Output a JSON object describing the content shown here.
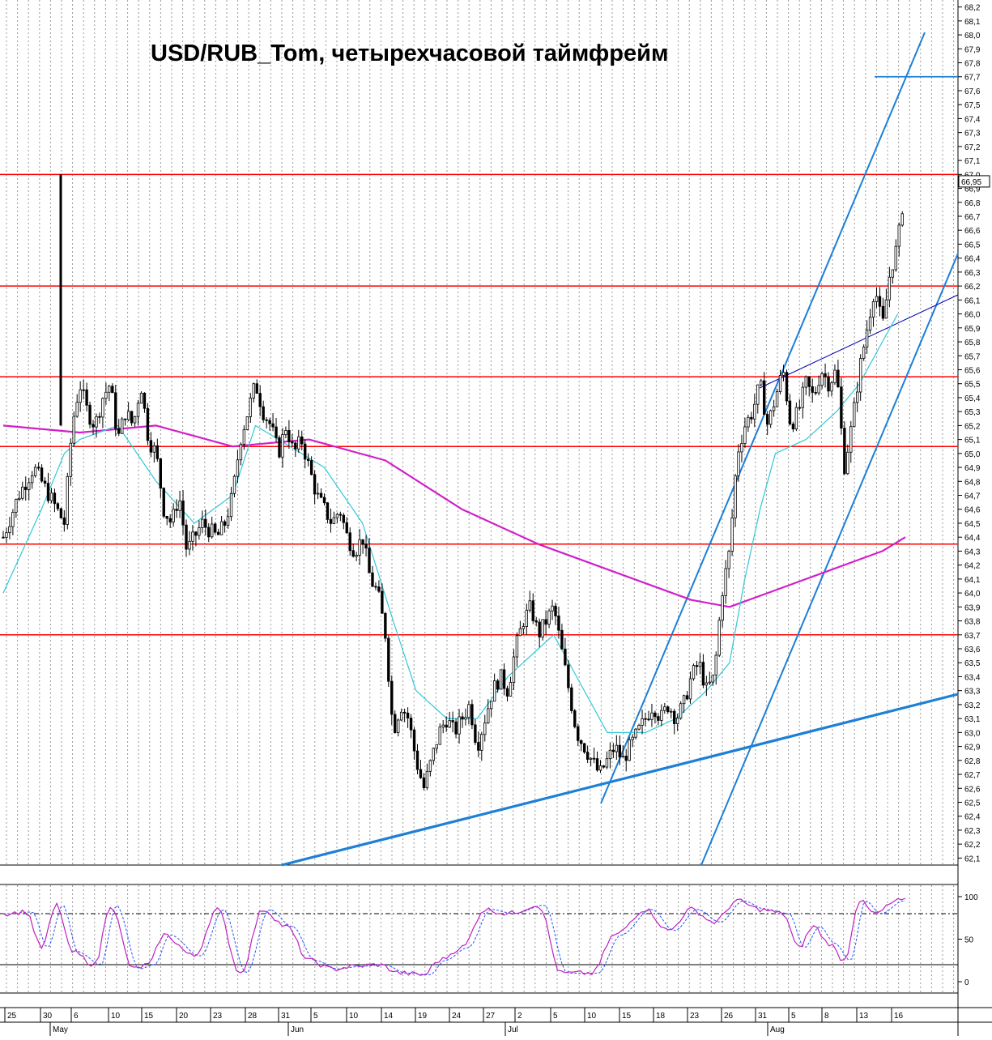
{
  "chart_data": {
    "type": "candlestick",
    "title": "USD/RUB_Tom, четырехчасовой таймфрейм",
    "last_price_label": "66,95",
    "price_axis": {
      "ylim": [
        62.05,
        68.25
      ],
      "ticks": [
        "68,2",
        "68,1",
        "68,0",
        "67,9",
        "67,8",
        "67,7",
        "67,6",
        "67,5",
        "67,4",
        "67,3",
        "67,2",
        "67,1",
        "67,0",
        "66,9",
        "66,8",
        "66,7",
        "66,6",
        "66,5",
        "66,4",
        "66,3",
        "66,2",
        "66,1",
        "66,0",
        "65,9",
        "65,8",
        "65,7",
        "65,6",
        "65,5",
        "65,4",
        "65,3",
        "65,2",
        "65,1",
        "65,0",
        "64,9",
        "64,8",
        "64,7",
        "64,6",
        "64,5",
        "64,4",
        "64,3",
        "64,2",
        "64,1",
        "64,0",
        "63,9",
        "63,8",
        "63,7",
        "63,6",
        "63,5",
        "63,4",
        "63,3",
        "63,2",
        "63,1",
        "63,0",
        "62,9",
        "62,8",
        "62,7",
        "62,6",
        "62,5",
        "62,4",
        "62,3",
        "62,2",
        "62,1"
      ]
    },
    "oscillator_axis": {
      "ylim": [
        -5,
        105
      ],
      "ticks": [
        "100",
        "50",
        "0"
      ],
      "levels": [
        80,
        20
      ]
    },
    "date_axis": {
      "days": [
        "25",
        "30",
        "6",
        "10",
        "15",
        "20",
        "23",
        "28",
        "31",
        "5",
        "10",
        "14",
        "19",
        "24",
        "27",
        "2",
        "5",
        "10",
        "15",
        "18",
        "23",
        "26",
        "31",
        "5",
        "8",
        "13",
        "16"
      ],
      "months": [
        "May",
        "Jun",
        "Jul",
        "Aug"
      ]
    },
    "support_resistance_levels": [
      67.0,
      66.2,
      65.55,
      65.05,
      64.35,
      63.7,
      67.7
    ],
    "price_path": [
      [
        0,
        64.4
      ],
      [
        2,
        64.7
      ],
      [
        4,
        64.9
      ],
      [
        6,
        64.7
      ],
      [
        8,
        64.5
      ],
      [
        9,
        65.2
      ],
      [
        10,
        65.5
      ],
      [
        11,
        65.3
      ],
      [
        12,
        65.2
      ],
      [
        13,
        65.4
      ],
      [
        14,
        65.5
      ],
      [
        15,
        65.1
      ],
      [
        16,
        65.3
      ],
      [
        17,
        65.2
      ],
      [
        18,
        65.5
      ],
      [
        19,
        65.1
      ],
      [
        20,
        65.0
      ],
      [
        21,
        64.6
      ],
      [
        22,
        64.5
      ],
      [
        23,
        64.7
      ],
      [
        24,
        64.3
      ],
      [
        25,
        64.4
      ],
      [
        26,
        64.5
      ],
      [
        28,
        64.4
      ],
      [
        29,
        64.5
      ],
      [
        30,
        64.7
      ],
      [
        31,
        65.1
      ],
      [
        32,
        65.3
      ],
      [
        33,
        65.5
      ],
      [
        34,
        65.3
      ],
      [
        35,
        65.2
      ],
      [
        36,
        65.0
      ],
      [
        37,
        65.2
      ],
      [
        38,
        65.0
      ],
      [
        39,
        65.1
      ],
      [
        40,
        64.9
      ],
      [
        41,
        64.7
      ],
      [
        42,
        64.6
      ],
      [
        43,
        64.5
      ],
      [
        44,
        64.6
      ],
      [
        45,
        64.4
      ],
      [
        46,
        64.3
      ],
      [
        47,
        64.4
      ],
      [
        48,
        64.1
      ],
      [
        49,
        64.0
      ],
      [
        50,
        63.7
      ],
      [
        51,
        63.0
      ],
      [
        52,
        63.2
      ],
      [
        53,
        63.1
      ],
      [
        54,
        62.8
      ],
      [
        55,
        62.6
      ],
      [
        56,
        62.8
      ],
      [
        57,
        63.0
      ],
      [
        58,
        63.1
      ],
      [
        59,
        63.0
      ],
      [
        60,
        63.1
      ],
      [
        61,
        63.2
      ],
      [
        62,
        62.9
      ],
      [
        63,
        63.1
      ],
      [
        64,
        63.3
      ],
      [
        65,
        63.4
      ],
      [
        66,
        63.3
      ],
      [
        67,
        63.6
      ],
      [
        68,
        63.8
      ],
      [
        69,
        63.9
      ],
      [
        70,
        63.7
      ],
      [
        71,
        63.8
      ],
      [
        72,
        63.9
      ],
      [
        73,
        63.6
      ],
      [
        74,
        63.3
      ],
      [
        75,
        63.0
      ],
      [
        76,
        62.9
      ],
      [
        77,
        62.8
      ],
      [
        78,
        62.7
      ],
      [
        79,
        62.8
      ],
      [
        80,
        62.9
      ],
      [
        81,
        62.8
      ],
      [
        82,
        62.9
      ],
      [
        83,
        63.0
      ],
      [
        84,
        63.1
      ],
      [
        85,
        63.2
      ],
      [
        86,
        63.1
      ],
      [
        87,
        63.2
      ],
      [
        88,
        63.1
      ],
      [
        89,
        63.2
      ],
      [
        90,
        63.4
      ],
      [
        91,
        63.5
      ],
      [
        92,
        63.3
      ],
      [
        93,
        63.4
      ],
      [
        94,
        64.0
      ],
      [
        95,
        64.3
      ],
      [
        96,
        65.0
      ],
      [
        97,
        65.2
      ],
      [
        98,
        65.3
      ],
      [
        99,
        65.5
      ],
      [
        100,
        65.2
      ],
      [
        101,
        65.4
      ],
      [
        102,
        65.6
      ],
      [
        103,
        65.2
      ],
      [
        104,
        65.3
      ],
      [
        105,
        65.5
      ],
      [
        106,
        65.4
      ],
      [
        107,
        65.6
      ],
      [
        108,
        65.5
      ],
      [
        109,
        65.6
      ],
      [
        110,
        64.9
      ],
      [
        111,
        65.2
      ],
      [
        112,
        65.6
      ],
      [
        113,
        65.9
      ],
      [
        114,
        66.2
      ],
      [
        115,
        65.9
      ],
      [
        116,
        66.3
      ],
      [
        117,
        66.5
      ],
      [
        118,
        66.95
      ]
    ],
    "moving_average_slow": [
      [
        0,
        65.2
      ],
      [
        10,
        65.15
      ],
      [
        20,
        65.2
      ],
      [
        30,
        65.05
      ],
      [
        40,
        65.1
      ],
      [
        50,
        64.95
      ],
      [
        60,
        64.6
      ],
      [
        70,
        64.35
      ],
      [
        80,
        64.15
      ],
      [
        90,
        63.95
      ],
      [
        95,
        63.9
      ],
      [
        100,
        64.0
      ],
      [
        105,
        64.1
      ],
      [
        110,
        64.2
      ],
      [
        115,
        64.3
      ],
      [
        118,
        64.4
      ]
    ],
    "moving_average_fast": [
      [
        0,
        64.0
      ],
      [
        5,
        64.6
      ],
      [
        8,
        65.0
      ],
      [
        10,
        65.1
      ],
      [
        15,
        65.2
      ],
      [
        20,
        64.8
      ],
      [
        25,
        64.5
      ],
      [
        30,
        64.7
      ],
      [
        33,
        65.2
      ],
      [
        36,
        65.1
      ],
      [
        42,
        64.9
      ],
      [
        47,
        64.5
      ],
      [
        51,
        63.8
      ],
      [
        54,
        63.3
      ],
      [
        58,
        63.1
      ],
      [
        62,
        63.1
      ],
      [
        66,
        63.4
      ],
      [
        70,
        63.6
      ],
      [
        72,
        63.7
      ],
      [
        75,
        63.4
      ],
      [
        79,
        63.0
      ],
      [
        84,
        63.0
      ],
      [
        88,
        63.1
      ],
      [
        92,
        63.3
      ],
      [
        95,
        63.5
      ],
      [
        97,
        64.1
      ],
      [
        99,
        64.6
      ],
      [
        101,
        65.0
      ],
      [
        105,
        65.1
      ],
      [
        109,
        65.3
      ],
      [
        112,
        65.5
      ],
      [
        115,
        65.8
      ],
      [
        117,
        66.0
      ]
    ],
    "oscillator_path": [
      [
        0,
        80
      ],
      [
        3,
        82
      ],
      [
        5,
        40
      ],
      [
        7,
        90
      ],
      [
        9,
        35
      ],
      [
        12,
        20
      ],
      [
        14,
        90
      ],
      [
        17,
        15
      ],
      [
        19,
        20
      ],
      [
        21,
        55
      ],
      [
        25,
        30
      ],
      [
        28,
        85
      ],
      [
        31,
        10
      ],
      [
        34,
        85
      ],
      [
        37,
        65
      ],
      [
        40,
        25
      ],
      [
        43,
        15
      ],
      [
        46,
        18
      ],
      [
        49,
        20
      ],
      [
        52,
        10
      ],
      [
        55,
        8
      ],
      [
        57,
        25
      ],
      [
        60,
        40
      ],
      [
        63,
        85
      ],
      [
        66,
        80
      ],
      [
        70,
        90
      ],
      [
        73,
        10
      ],
      [
        77,
        10
      ],
      [
        80,
        55
      ],
      [
        84,
        85
      ],
      [
        87,
        60
      ],
      [
        90,
        85
      ],
      [
        93,
        70
      ],
      [
        96,
        95
      ],
      [
        99,
        85
      ],
      [
        102,
        80
      ],
      [
        104,
        40
      ],
      [
        106,
        65
      ],
      [
        108,
        45
      ],
      [
        110,
        25
      ],
      [
        112,
        95
      ],
      [
        114,
        80
      ],
      [
        117,
        95
      ]
    ]
  }
}
